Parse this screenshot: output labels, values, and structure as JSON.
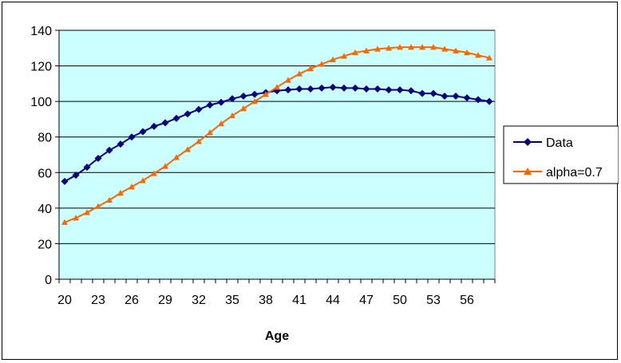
{
  "chart_data": {
    "type": "line",
    "xlabel": "Age",
    "ylabel": "",
    "ylim": [
      0,
      140
    ],
    "yticks": [
      0,
      20,
      40,
      60,
      80,
      100,
      120,
      140
    ],
    "x": [
      20,
      21,
      22,
      23,
      24,
      25,
      26,
      27,
      28,
      29,
      30,
      31,
      32,
      33,
      34,
      35,
      36,
      37,
      38,
      39,
      40,
      41,
      42,
      43,
      44,
      45,
      46,
      47,
      48,
      49,
      50,
      51,
      52,
      53,
      54,
      55,
      56,
      57,
      58
    ],
    "xtick_labels": [
      "20",
      "23",
      "26",
      "29",
      "32",
      "35",
      "38",
      "41",
      "44",
      "47",
      "50",
      "53",
      "56"
    ],
    "grid": "horizontal",
    "plot_background": "#CCFFFF",
    "legend_position": "right",
    "series": [
      {
        "name": "Data",
        "color": "#000080",
        "marker": "diamond",
        "values": [
          55,
          58.5,
          63,
          68,
          72.5,
          76,
          80,
          83,
          86,
          88,
          90.5,
          93,
          95.5,
          98,
          99.5,
          101.5,
          103,
          104,
          105,
          106,
          106.5,
          107,
          107,
          107.5,
          108,
          107.5,
          107.5,
          107,
          107,
          106.5,
          106.5,
          106,
          104.5,
          104.5,
          103,
          103,
          102,
          101,
          100
        ]
      },
      {
        "name": "alpha=0.7",
        "color": "#FF6600",
        "marker": "triangle",
        "values": [
          32,
          34.5,
          37.5,
          41,
          44.5,
          48.5,
          52,
          55.5,
          59.5,
          63.5,
          68.5,
          73,
          77.5,
          82.5,
          87.5,
          92,
          96,
          100,
          104,
          108,
          112,
          115.5,
          118.5,
          121,
          123.5,
          125.5,
          127.5,
          128.5,
          129.5,
          130,
          130.5,
          130.5,
          130.5,
          130.5,
          129.5,
          128.5,
          127.5,
          126,
          124.5
        ]
      }
    ]
  }
}
